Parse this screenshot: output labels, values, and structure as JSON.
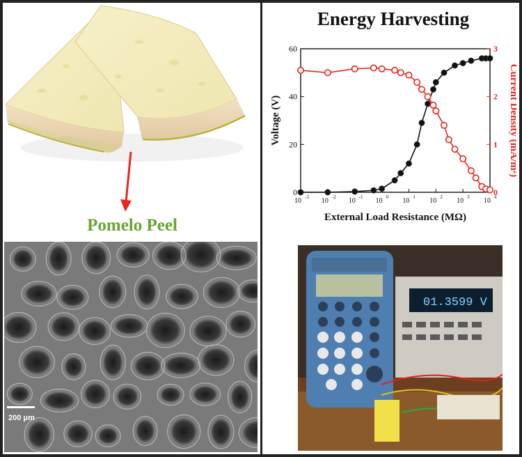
{
  "left_panel": {
    "title": "Pomelo Peel",
    "scale_bar_label": "200 μm"
  },
  "right_panel": {
    "title": "Energy Harvesting"
  },
  "chart_data": {
    "type": "scatter",
    "xlabel": "External Load Resistance (MΩ)",
    "ylabel_left": "Voltage (V)",
    "ylabel_right": "Current Density (mA/m²)",
    "x_scale": "log",
    "xlim": [
      0.001,
      10000
    ],
    "ylim_left": [
      0,
      60
    ],
    "ylim_right": [
      0,
      3
    ],
    "x_ticks": [
      "10",
      "10",
      "10",
      "10",
      "10",
      "10",
      "10",
      "10"
    ],
    "x_tick_exponents": [
      "-3",
      "-2",
      "-1",
      "0",
      "1",
      "2",
      "3",
      "4"
    ],
    "y_ticks_left": [
      "0",
      "20",
      "40",
      "60"
    ],
    "y_ticks_right": [
      "0",
      "1",
      "2",
      "3"
    ],
    "series": [
      {
        "axis": "left",
        "color": "#111111",
        "x": [
          0.001,
          0.01,
          0.1,
          0.5,
          1,
          3,
          5,
          10,
          20,
          30,
          50,
          80,
          100,
          200,
          500,
          1000,
          2000,
          5000,
          7000,
          10000
        ],
        "y": [
          0,
          0,
          0.3,
          0.8,
          1.5,
          5,
          8,
          12,
          20,
          29,
          37,
          43,
          46,
          50,
          53,
          54,
          55,
          56,
          56,
          56
        ]
      },
      {
        "axis": "right",
        "color": "#e8261c",
        "x": [
          0.001,
          0.01,
          0.1,
          0.5,
          1,
          3,
          5,
          10,
          20,
          30,
          50,
          80,
          100,
          200,
          300,
          500,
          1000,
          2000,
          3000,
          5000,
          7000,
          10000
        ],
        "y": [
          2.55,
          2.5,
          2.58,
          2.6,
          2.58,
          2.55,
          2.5,
          2.45,
          2.3,
          2.15,
          2.0,
          1.82,
          1.7,
          1.4,
          1.1,
          0.9,
          0.7,
          0.45,
          0.3,
          0.12,
          0.07,
          0.05
        ]
      }
    ]
  },
  "colors": {
    "pomelo_title": "#6aa533",
    "current_series": "#e8261c",
    "voltage_series": "#111111",
    "arrow": "#e8261c"
  }
}
